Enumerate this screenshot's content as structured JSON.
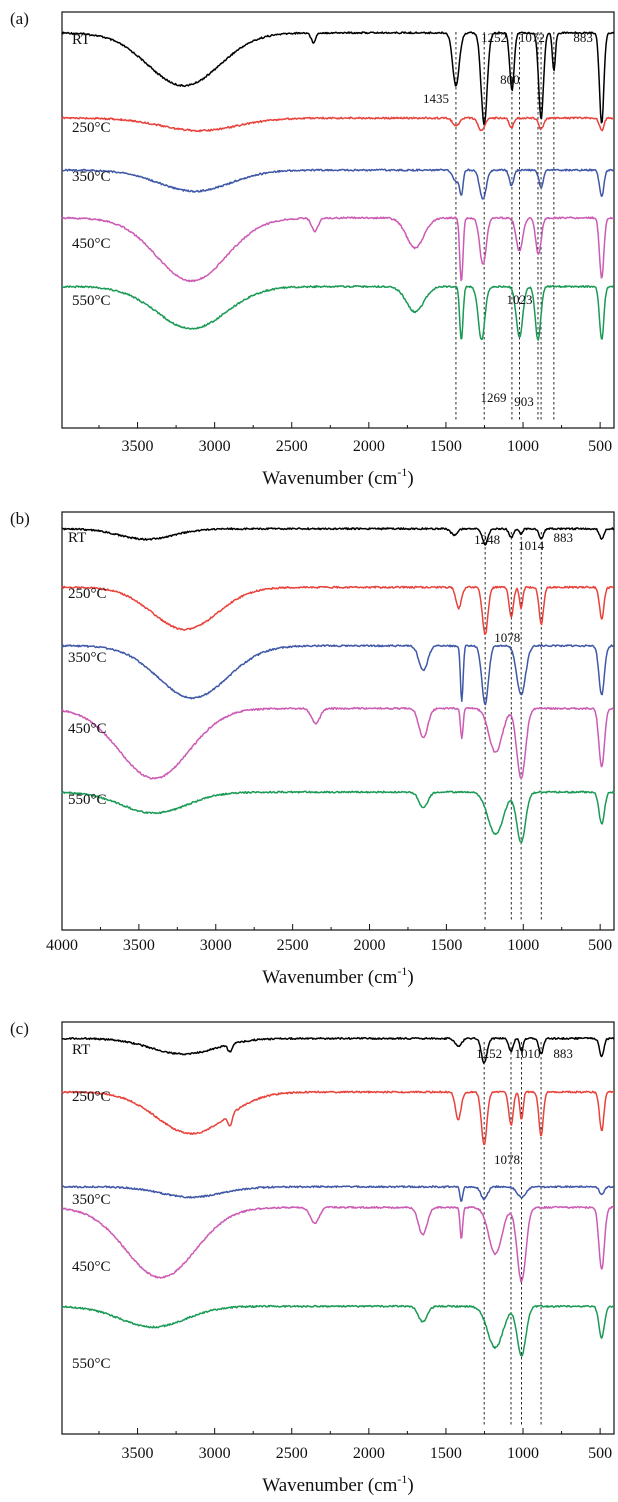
{
  "chart_data": [
    {
      "type": "line",
      "panel_label": "(a)",
      "xlabel": "Wavenumber (cm",
      "xlabel_sup": "-1",
      "xlabel_close": ")",
      "xlim": [
        3990,
        410
      ],
      "xticks": [
        3500,
        3000,
        2500,
        2000,
        1500,
        1000,
        500
      ],
      "xtick_labels": [
        "3500",
        "3000",
        "2500",
        "2000",
        "1500",
        "1000",
        "500"
      ],
      "series": [
        {
          "name": "RT",
          "color": "#000000",
          "offset": 0.05,
          "scale": 0.55,
          "peaks": [
            [
              3200,
              0.55,
              330
            ],
            [
              2360,
              0.1,
              20
            ],
            [
              1435,
              0.55,
              30
            ],
            [
              1252,
              0.95,
              28
            ],
            [
              1072,
              0.6,
              20
            ],
            [
              883,
              0.9,
              22
            ],
            [
              800,
              0.4,
              14
            ],
            [
              490,
              0.95,
              20
            ]
          ]
        },
        {
          "name": "250°C",
          "color": "#e8423b",
          "offset": 0.255,
          "scale": 0.18,
          "peaks": [
            [
              3100,
              0.4,
              350
            ],
            [
              1435,
              0.25,
              30
            ],
            [
              1270,
              0.4,
              30
            ],
            [
              1075,
              0.3,
              20
            ],
            [
              883,
              0.35,
              22
            ],
            [
              490,
              0.4,
              20
            ]
          ]
        },
        {
          "name": "350°C",
          "color": "#3f57a7",
          "offset": 0.38,
          "scale": 0.22,
          "peaks": [
            [
              3130,
              0.55,
              330
            ],
            [
              1435,
              0.3,
              28
            ],
            [
              1400,
              0.6,
              15
            ],
            [
              1260,
              0.75,
              30
            ],
            [
              1075,
              0.4,
              20
            ],
            [
              883,
              0.45,
              20
            ],
            [
              490,
              0.7,
              20
            ]
          ]
        },
        {
          "name": "450°C",
          "color": "#cc5bb3",
          "offset": 0.495,
          "scale": 0.38,
          "peaks": [
            [
              3150,
              0.95,
              320
            ],
            [
              2350,
              0.2,
              30
            ],
            [
              1700,
              0.45,
              80
            ],
            [
              1400,
              0.95,
              15
            ],
            [
              1260,
              0.7,
              30
            ],
            [
              1023,
              0.5,
              30
            ],
            [
              900,
              0.55,
              25
            ],
            [
              490,
              0.9,
              20
            ]
          ]
        },
        {
          "name": "550°C",
          "color": "#1a9a55",
          "offset": 0.66,
          "scale": 0.32,
          "peaks": [
            [
              3150,
              0.75,
              320
            ],
            [
              1700,
              0.45,
              80
            ],
            [
              1400,
              0.95,
              15
            ],
            [
              1269,
              0.95,
              30
            ],
            [
              1023,
              0.9,
              30
            ],
            [
              903,
              0.95,
              25
            ],
            [
              490,
              0.95,
              20
            ]
          ]
        }
      ],
      "annotations": [
        {
          "text": "1435",
          "x": 1435
        },
        {
          "text": "1252",
          "x": 1252
        },
        {
          "text": "1072",
          "x": 1072
        },
        {
          "text": "883",
          "x": 883
        },
        {
          "text": "800",
          "x": 800
        },
        {
          "text": "1023",
          "x": 1023
        },
        {
          "text": "1269",
          "x": 1269
        },
        {
          "text": "903",
          "x": 903
        }
      ],
      "marker_lines": [
        1435,
        1252,
        1072,
        883,
        800,
        1023,
        903
      ]
    },
    {
      "type": "line",
      "panel_label": "(b)",
      "xlabel": "Wavenumber (cm",
      "xlabel_sup": "-1",
      "xlabel_close": ")",
      "xlim": [
        4000,
        410
      ],
      "xticks": [
        4000,
        3500,
        3000,
        2500,
        2000,
        1500,
        1000,
        500
      ],
      "xtick_labels": [
        "4000",
        "3500",
        "3000",
        "2500",
        "2000",
        "1500",
        "1000",
        "500"
      ],
      "series": [
        {
          "name": "RT",
          "color": "#000000",
          "offset": 0.04,
          "scale": 0.1,
          "peaks": [
            [
              3450,
              0.6,
              250
            ],
            [
              1450,
              0.35,
              30
            ],
            [
              1248,
              0.9,
              25
            ],
            [
              1078,
              0.5,
              20
            ],
            [
              1014,
              0.3,
              15
            ],
            [
              883,
              0.55,
              20
            ],
            [
              490,
              0.6,
              20
            ]
          ]
        },
        {
          "name": "250°C",
          "color": "#e8423b",
          "offset": 0.18,
          "scale": 0.3,
          "peaks": [
            [
              3200,
              0.8,
              300
            ],
            [
              1420,
              0.4,
              25
            ],
            [
              1248,
              0.9,
              25
            ],
            [
              1078,
              0.55,
              20
            ],
            [
              1014,
              0.4,
              15
            ],
            [
              883,
              0.7,
              20
            ],
            [
              490,
              0.6,
              20
            ]
          ]
        },
        {
          "name": "350°C",
          "color": "#3f57a7",
          "offset": 0.32,
          "scale": 0.35,
          "peaks": [
            [
              3150,
              0.85,
              320
            ],
            [
              1650,
              0.4,
              40
            ],
            [
              1400,
              0.9,
              12
            ],
            [
              1248,
              0.95,
              30
            ],
            [
              1014,
              0.8,
              40
            ],
            [
              490,
              0.8,
              25
            ]
          ]
        },
        {
          "name": "450°C",
          "color": "#cc5bb3",
          "offset": 0.47,
          "scale": 0.42,
          "peaks": [
            [
              3400,
              0.95,
              320
            ],
            [
              2350,
              0.2,
              40
            ],
            [
              1650,
              0.4,
              40
            ],
            [
              1400,
              0.4,
              12
            ],
            [
              1180,
              0.6,
              60
            ],
            [
              1014,
              0.95,
              40
            ],
            [
              490,
              0.8,
              25
            ]
          ]
        },
        {
          "name": "550°C",
          "color": "#1a9a55",
          "offset": 0.67,
          "scale": 0.3,
          "peaks": [
            [
              3400,
              0.4,
              300
            ],
            [
              1650,
              0.3,
              40
            ],
            [
              1180,
              0.8,
              70
            ],
            [
              1014,
              0.95,
              40
            ],
            [
              490,
              0.6,
              25
            ]
          ]
        }
      ],
      "annotations": [
        {
          "text": "1248",
          "x": 1248
        },
        {
          "text": "1014",
          "x": 1014
        },
        {
          "text": "883",
          "x": 883
        },
        {
          "text": "1078",
          "x": 1078
        }
      ],
      "marker_lines": [
        1248,
        1078,
        1014,
        883
      ]
    },
    {
      "type": "line",
      "panel_label": "(c)",
      "xlabel": "Wavenumber (cm",
      "xlabel_sup": "-1",
      "xlabel_close": ")",
      "xlim": [
        3990,
        410
      ],
      "xticks": [
        3500,
        3000,
        2500,
        2000,
        1500,
        1000,
        500
      ],
      "xtick_labels": [
        "3500",
        "3000",
        "2500",
        "2000",
        "1500",
        "1000",
        "500"
      ],
      "series": [
        {
          "name": "RT",
          "color": "#000000",
          "offset": 0.04,
          "scale": 0.15,
          "peaks": [
            [
              3200,
              0.6,
              300
            ],
            [
              2900,
              0.3,
              20
            ],
            [
              1420,
              0.3,
              30
            ],
            [
              1252,
              0.95,
              25
            ],
            [
              1078,
              0.5,
              20
            ],
            [
              1010,
              0.5,
              15
            ],
            [
              883,
              0.6,
              20
            ],
            [
              490,
              0.7,
              20
            ]
          ]
        },
        {
          "name": "250°C",
          "color": "#e8423b",
          "offset": 0.17,
          "scale": 0.32,
          "peaks": [
            [
              3150,
              0.75,
              320
            ],
            [
              2900,
              0.2,
              20
            ],
            [
              1420,
              0.5,
              25
            ],
            [
              1252,
              0.95,
              25
            ],
            [
              1078,
              0.6,
              20
            ],
            [
              1010,
              0.5,
              15
            ],
            [
              883,
              0.8,
              20
            ],
            [
              490,
              0.7,
              20
            ]
          ]
        },
        {
          "name": "350°C",
          "color": "#3f57a7",
          "offset": 0.4,
          "scale": 0.12,
          "peaks": [
            [
              3150,
              0.5,
              280
            ],
            [
              1400,
              0.7,
              12
            ],
            [
              1252,
              0.6,
              30
            ],
            [
              1010,
              0.5,
              40
            ],
            [
              490,
              0.4,
              20
            ]
          ]
        },
        {
          "name": "450°C",
          "color": "#cc5bb3",
          "offset": 0.45,
          "scale": 0.45,
          "peaks": [
            [
              3350,
              0.9,
              320
            ],
            [
              2350,
              0.2,
              40
            ],
            [
              1650,
              0.35,
              40
            ],
            [
              1400,
              0.4,
              12
            ],
            [
              1180,
              0.6,
              60
            ],
            [
              1010,
              0.95,
              40
            ],
            [
              490,
              0.8,
              25
            ]
          ]
        },
        {
          "name": "550°C",
          "color": "#1a9a55",
          "offset": 0.69,
          "scale": 0.3,
          "peaks": [
            [
              3400,
              0.4,
              300
            ],
            [
              1650,
              0.3,
              40
            ],
            [
              1180,
              0.8,
              70
            ],
            [
              1010,
              0.95,
              40
            ],
            [
              490,
              0.6,
              25
            ]
          ]
        }
      ],
      "annotations": [
        {
          "text": "1252",
          "x": 1252
        },
        {
          "text": "1010",
          "x": 1010
        },
        {
          "text": "883",
          "x": 883
        },
        {
          "text": "1078",
          "x": 1078
        }
      ],
      "marker_lines": [
        1252,
        1078,
        1010,
        883
      ]
    }
  ]
}
